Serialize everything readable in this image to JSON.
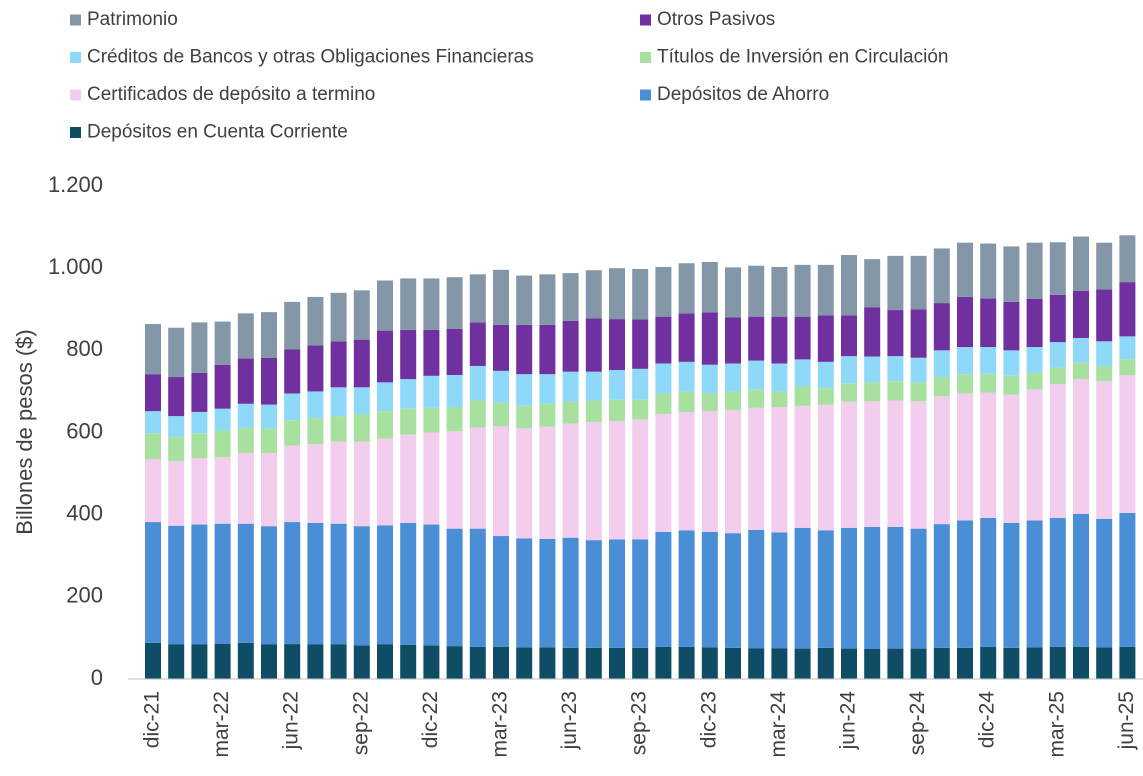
{
  "chart_data": {
    "type": "stacked_bar",
    "y_label": "Billones de pesos ($)",
    "categories": [
      "dic-21",
      null,
      null,
      "mar-22",
      null,
      null,
      "jun-22",
      null,
      null,
      "sep-22",
      null,
      null,
      "dic-22",
      null,
      null,
      "mar-23",
      null,
      null,
      "jun-23",
      null,
      null,
      "sep-23",
      null,
      null,
      "dic-23",
      null,
      null,
      "mar-24",
      null,
      null,
      "jun-24",
      null,
      null,
      "sep-24",
      null,
      null,
      "dic-24",
      null,
      null,
      "mar-25",
      null,
      null,
      "jun-25"
    ],
    "ylim": [
      0,
      1200
    ],
    "yticks": [
      0,
      200,
      400,
      600,
      800,
      {
        "value": 1000,
        "label": "1.000"
      },
      {
        "value": 1200,
        "label": "1.200"
      }
    ],
    "grid": false,
    "legend": "top",
    "series": [
      {
        "name": "Depósitos en Cuenta Corriente",
        "color": "#0f4c65",
        "values": [
          88,
          84,
          84,
          86,
          88,
          84,
          85,
          84,
          84,
          82,
          84,
          83,
          82,
          80,
          78,
          78,
          77,
          77,
          76,
          76,
          76,
          76,
          78,
          78,
          77,
          76,
          75,
          75,
          74,
          76,
          74,
          73,
          74,
          74,
          76,
          76,
          78,
          76,
          77,
          78,
          78,
          77,
          78
        ]
      },
      {
        "name": "Depósitos de Ahorro",
        "color": "#4a8fd6",
        "values": [
          294,
          289,
          292,
          292,
          290,
          288,
          297,
          296,
          294,
          290,
          290,
          297,
          294,
          286,
          288,
          270,
          265,
          264,
          268,
          262,
          264,
          264,
          280,
          284,
          281,
          279,
          288,
          282,
          294,
          286,
          294,
          297,
          296,
          292,
          301,
          310,
          314,
          304,
          309,
          314,
          324,
          313,
          326
        ]
      },
      {
        "name": "Certificados de depósito a termino",
        "color": "#f2cdee",
        "values": [
          153,
          157,
          162,
          162,
          172,
          178,
          186,
          192,
          200,
          206,
          211,
          215,
          224,
          237,
          246,
          267,
          268,
          273,
          278,
          287,
          288,
          292,
          287,
          288,
          294,
          300,
          297,
          305,
          297,
          306,
          307,
          306,
          308,
          310,
          311,
          309,
          305,
          312,
          319,
          326,
          328,
          335,
          336
        ]
      },
      {
        "name": "Títulos de Inversión en Circulación",
        "color": "#a8e0a0",
        "values": [
          63,
          60,
          60,
          65,
          62,
          60,
          62,
          63,
          62,
          67,
          67,
          63,
          60,
          59,
          66,
          57,
          55,
          56,
          53,
          53,
          52,
          48,
          50,
          50,
          43,
          45,
          45,
          38,
          47,
          40,
          45,
          46,
          47,
          46,
          47,
          47,
          46,
          46,
          40,
          40,
          40,
          37,
          38
        ]
      },
      {
        "name": "Créditos de Bancos y otras Obligaciones Financieras",
        "color": "#8ed8f8",
        "values": [
          54,
          50,
          52,
          53,
          58,
          58,
          65,
          65,
          70,
          65,
          70,
          72,
          78,
          78,
          84,
          78,
          77,
          72,
          73,
          70,
          72,
          75,
          73,
          72,
          70,
          68,
          70,
          68,
          66,
          64,
          66,
          63,
          61,
          60,
          65,
          66,
          65,
          62,
          63,
          62,
          60,
          60,
          56
        ]
      },
      {
        "name": "Otros Pasivos",
        "color": "#7030a0",
        "values": [
          90,
          95,
          95,
          107,
          110,
          114,
          107,
          112,
          112,
          116,
          126,
          120,
          112,
          112,
          106,
          112,
          120,
          120,
          124,
          130,
          124,
          120,
          114,
          118,
          127,
          112,
          107,
          114,
          104,
          113,
          99,
          120,
          112,
          118,
          115,
          122,
          118,
          118,
          117,
          115,
          115,
          126,
          132
        ]
      },
      {
        "name": "Patrimonio",
        "color": "#8497a8",
        "values": [
          122,
          120,
          123,
          105,
          110,
          111,
          116,
          118,
          118,
          120,
          122,
          125,
          125,
          126,
          117,
          134,
          120,
          123,
          116,
          117,
          124,
          123,
          121,
          122,
          123,
          122,
          124,
          121,
          126,
          123,
          147,
          117,
          132,
          130,
          133,
          132,
          134,
          135,
          137,
          128,
          132,
          114,
          114
        ]
      }
    ]
  }
}
